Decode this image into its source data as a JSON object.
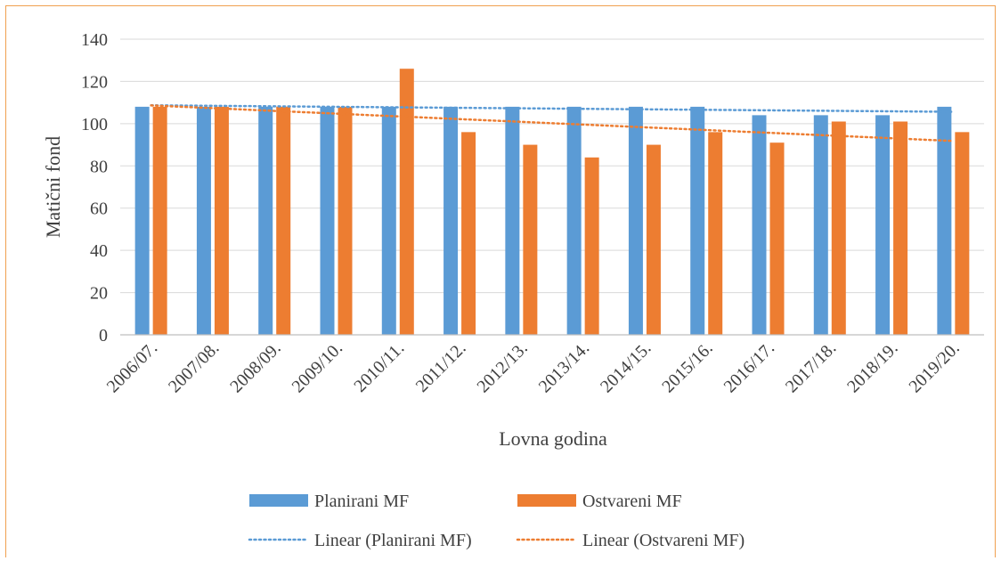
{
  "chart_data": {
    "type": "bar",
    "title": "",
    "xlabel": "Lovna godina",
    "ylabel": "Matični fond",
    "ylim": [
      0,
      140
    ],
    "yticks": [
      0,
      20,
      40,
      60,
      80,
      100,
      120,
      140
    ],
    "grid": true,
    "legend_position": "bottom",
    "categories": [
      "2006/07.",
      "2007/08.",
      "2008/09.",
      "2009/10.",
      "2010/11.",
      "2011/12.",
      "2012/13.",
      "2013/14.",
      "2014/15.",
      "2015/16.",
      "2016/17.",
      "2017/18.",
      "2018/19.",
      "2019/20."
    ],
    "series": [
      {
        "name": "Planirani MF",
        "color": "#5b9bd5",
        "values": [
          108,
          108,
          108,
          108,
          108,
          108,
          108,
          108,
          108,
          108,
          104,
          104,
          104,
          108
        ]
      },
      {
        "name": "Ostvareni MF",
        "color": "#ed7d31",
        "values": [
          108,
          108,
          108,
          108,
          126,
          96,
          90,
          84,
          90,
          96,
          91,
          101,
          101,
          96
        ]
      }
    ],
    "trendlines": [
      {
        "name": "Linear (Planirani MF)",
        "color": "#5b9bd5",
        "style": "dotted",
        "series_index": 0
      },
      {
        "name": "Linear (Ostvareni MF)",
        "color": "#ed7d31",
        "style": "dotted",
        "series_index": 1
      }
    ]
  }
}
